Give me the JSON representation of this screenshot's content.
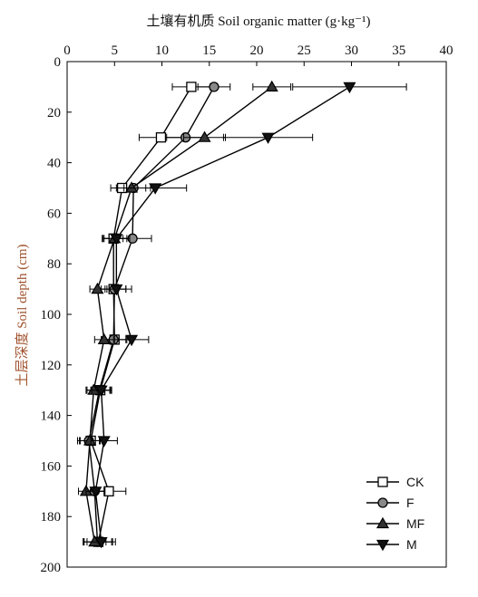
{
  "chart_data": {
    "type": "line",
    "title": "土壤有机质 Soil organic matter (g·kg⁻¹)",
    "xlabel": "土壤有机质 Soil organic matter (g·kg⁻¹)",
    "ylabel": "土层深度 Soil depth (cm)",
    "xlim": [
      0,
      40
    ],
    "ylim": [
      0,
      200
    ],
    "x_axis_position": "top",
    "y_inverted": true,
    "x_ticks": [
      0,
      5,
      10,
      15,
      20,
      25,
      30,
      35,
      40
    ],
    "y_ticks": [
      0,
      20,
      40,
      60,
      80,
      100,
      120,
      140,
      160,
      180,
      200
    ],
    "depths": [
      10,
      30,
      50,
      70,
      90,
      110,
      130,
      150,
      170,
      190
    ],
    "grid": false,
    "legend_position": "bottom-right",
    "series": [
      {
        "name": "CK",
        "marker": "square",
        "fill": "#ffffff",
        "values": [
          13.1,
          9.9,
          5.8,
          4.9,
          4.9,
          5.0,
          3.5,
          2.5,
          4.4,
          3.3
        ],
        "errors": [
          2.0,
          2.3,
          1.2,
          1.0,
          1.3,
          1.3,
          1.0,
          1.2,
          1.8,
          1.5
        ]
      },
      {
        "name": "F",
        "marker": "circle",
        "fill": "#888888",
        "values": [
          15.5,
          12.5,
          7.0,
          6.9,
          5.0,
          4.9,
          3.4,
          2.3,
          2.9,
          3.2
        ],
        "errors": [
          1.7,
          2.0,
          1.8,
          2.0,
          1.8,
          1.3,
          1.3,
          1.2,
          1.0,
          1.5
        ]
      },
      {
        "name": "MF",
        "marker": "triangle-up",
        "fill": "#333333",
        "values": [
          21.6,
          14.5,
          6.8,
          5.0,
          3.2,
          3.9,
          2.8,
          2.4,
          2.0,
          2.9
        ],
        "errors": [
          2.0,
          2.2,
          1.5,
          1.3,
          0.8,
          1.0,
          0.8,
          1.0,
          0.8,
          1.2
        ]
      },
      {
        "name": "M",
        "marker": "triangle-down",
        "fill": "#111111",
        "values": [
          29.8,
          21.2,
          9.3,
          5.2,
          5.2,
          6.8,
          3.6,
          3.9,
          3.0,
          3.6
        ],
        "errors": [
          6.0,
          4.7,
          3.3,
          1.4,
          1.0,
          1.8,
          1.0,
          1.4,
          1.0,
          1.5
        ]
      }
    ]
  }
}
